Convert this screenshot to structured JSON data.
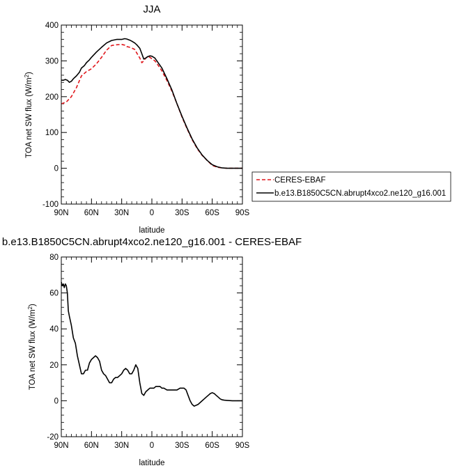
{
  "chart_data": [
    {
      "type": "line",
      "title": "JJA",
      "xlabel": "latitude",
      "ylabel": "TOA net SW flux (W/m²)",
      "ylabel_main": "TOA net SW flux (W/m",
      "ylabel_sup": "2",
      "ylabel_tail": ")",
      "xlim": [
        90,
        -90
      ],
      "ylim": [
        -100,
        400
      ],
      "x_ticks": [
        90,
        60,
        30,
        0,
        -30,
        -60,
        -90
      ],
      "x_tick_labels": [
        "90N",
        "60N",
        "30N",
        "0",
        "30S",
        "60S",
        "90S"
      ],
      "y_ticks": [
        -100,
        0,
        100,
        200,
        300,
        400
      ],
      "y_tick_labels": [
        "-100",
        "0",
        "100",
        "200",
        "300",
        "400"
      ],
      "legend_position": "right",
      "series": [
        {
          "name": "CERES-EBAF",
          "color": "#e0161b",
          "dash": true,
          "x": [
            90,
            85,
            80,
            75,
            70,
            65,
            60,
            55,
            50,
            45,
            40,
            35,
            30,
            27,
            25,
            22,
            20,
            17,
            15,
            12,
            10,
            8,
            6,
            4,
            2,
            0,
            -3,
            -5,
            -10,
            -15,
            -20,
            -25,
            -30,
            -35,
            -40,
            -45,
            -50,
            -55,
            -60,
            -65,
            -70,
            -75,
            -80,
            -85,
            -90
          ],
          "y": [
            180,
            185,
            200,
            225,
            258,
            270,
            278,
            292,
            310,
            330,
            343,
            345,
            346,
            344,
            340,
            338,
            336,
            332,
            322,
            308,
            295,
            300,
            308,
            312,
            310,
            306,
            300,
            293,
            272,
            245,
            215,
            180,
            143,
            110,
            80,
            55,
            36,
            22,
            8,
            3,
            1,
            0,
            0,
            0,
            0
          ]
        },
        {
          "name": "b.e13.B1850C5CN.abrupt4xco2.ne120_g16.001",
          "color": "#000000",
          "dash": false,
          "x": [
            90,
            88,
            86,
            84,
            82,
            80,
            78,
            75,
            72,
            70,
            67,
            65,
            62,
            60,
            55,
            50,
            45,
            40,
            35,
            30,
            27,
            25,
            22,
            20,
            17,
            15,
            12,
            10,
            8,
            6,
            4,
            2,
            0,
            -3,
            -5,
            -10,
            -15,
            -20,
            -25,
            -30,
            -35,
            -40,
            -45,
            -50,
            -55,
            -60,
            -65,
            -70,
            -75,
            -80,
            -85,
            -90
          ],
          "y": [
            246,
            246,
            248,
            246,
            240,
            243,
            250,
            258,
            268,
            280,
            287,
            295,
            303,
            310,
            325,
            338,
            350,
            357,
            360,
            360,
            362,
            361,
            358,
            355,
            350,
            345,
            335,
            320,
            305,
            308,
            312,
            314,
            313,
            308,
            300,
            280,
            250,
            218,
            180,
            145,
            112,
            82,
            57,
            37,
            22,
            10,
            4,
            1,
            0,
            0,
            0,
            0
          ]
        }
      ]
    },
    {
      "type": "line",
      "title": "b.e13.B1850C5CN.abrupt4xco2.ne120_g16.001 - CERES-EBAF",
      "xlabel": "latitude",
      "ylabel": "TOA net SW flux (W/m²)",
      "ylabel_main": "TOA net SW flux (W/m",
      "ylabel_sup": "2",
      "ylabel_tail": ")",
      "xlim": [
        90,
        -90
      ],
      "ylim": [
        -20,
        80
      ],
      "x_ticks": [
        90,
        60,
        30,
        0,
        -30,
        -60,
        -90
      ],
      "x_tick_labels": [
        "90N",
        "60N",
        "30N",
        "0",
        "30S",
        "60S",
        "90S"
      ],
      "y_ticks": [
        -20,
        0,
        20,
        40,
        60,
        80
      ],
      "y_tick_labels": [
        "-20",
        "0",
        "20",
        "40",
        "60",
        "80"
      ],
      "series": [
        {
          "name": "",
          "color": "#000000",
          "dash": false,
          "x": [
            90,
            89,
            88,
            87,
            86,
            85,
            84,
            83,
            82,
            80,
            78,
            76,
            74,
            72,
            70,
            68,
            66,
            64,
            62,
            60,
            58,
            56,
            54,
            52,
            50,
            48,
            46,
            44,
            42,
            40,
            38,
            36,
            34,
            32,
            30,
            28,
            26,
            24,
            22,
            20,
            18,
            16,
            14,
            12,
            10,
            8,
            6,
            4,
            2,
            0,
            -2,
            -4,
            -6,
            -8,
            -10,
            -12,
            -15,
            -18,
            -20,
            -22,
            -25,
            -28,
            -30,
            -32,
            -34,
            -36,
            -38,
            -40,
            -42,
            -44,
            -46,
            -48,
            -50,
            -52,
            -54,
            -56,
            -58,
            -60,
            -62,
            -63,
            -64,
            -66,
            -68,
            -70,
            -72,
            -75,
            -80,
            -85,
            -90
          ],
          "y": [
            66,
            64,
            65,
            63,
            65,
            64,
            60,
            50,
            47,
            42,
            35,
            32,
            25,
            20,
            15,
            15,
            17,
            17,
            21,
            23,
            24,
            25,
            24,
            22,
            17,
            15,
            14,
            12,
            10,
            10,
            12,
            13,
            13,
            14,
            15,
            17,
            18,
            17,
            15,
            15,
            17,
            20,
            18,
            10,
            4,
            3,
            5,
            6,
            7,
            7,
            7,
            8,
            8,
            8,
            7,
            7,
            6,
            6,
            6,
            6,
            6,
            7,
            7,
            7,
            6,
            3,
            0,
            -2,
            -3,
            -2.5,
            -2,
            -1,
            0,
            1,
            2,
            3,
            4,
            4.5,
            4,
            3.5,
            3,
            2,
            1,
            0.5,
            0.3,
            0.2,
            0,
            0,
            0
          ]
        }
      ]
    }
  ]
}
